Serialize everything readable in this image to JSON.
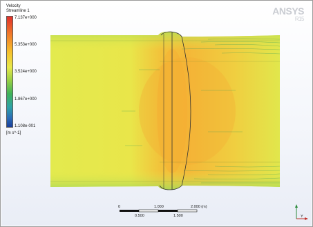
{
  "legend": {
    "title_line1": "Velocity",
    "title_line2": "Streamline 1",
    "ticks": [
      "7.137e+000",
      "5.353e+000",
      "3.524e+000",
      "1.867e+000",
      "1.108e-001"
    ],
    "unit": "[m s^-1]",
    "colors": [
      "#e0302a",
      "#f6c02c",
      "#e7e84a",
      "#3fb25a",
      "#1a3f9a"
    ]
  },
  "logo": {
    "main": "ANSYS",
    "sub": "R15"
  },
  "scale": {
    "top_labels": [
      "0",
      "1.000",
      "2.000 (m)"
    ],
    "bottom_labels": [
      "0.500",
      "1.500"
    ]
  },
  "axis": {
    "y_label": "Y"
  },
  "flow": {
    "base_color": "#dfe64a",
    "hot_color": "#f3b83a",
    "streak_color": "#2f9a5a"
  }
}
